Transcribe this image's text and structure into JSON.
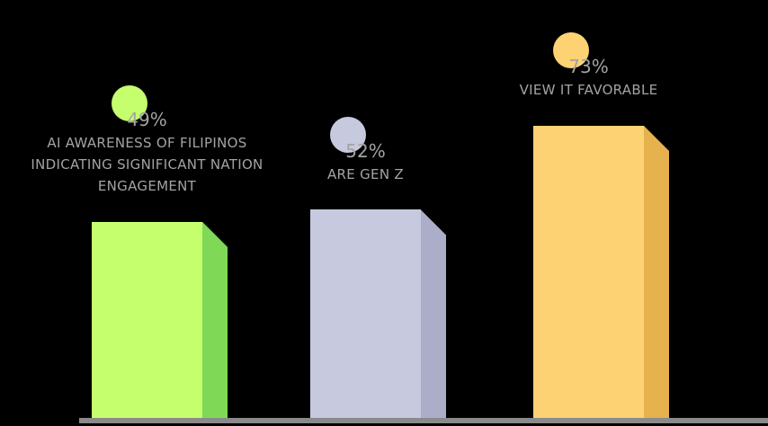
{
  "chart_data": {
    "type": "bar",
    "categories": [
      "AI AWARENESS OF FILIPINOS INDICATING SIGNIFICANT NATION ENGAGEMENT",
      "ARE GEN Z",
      "VIEW IT FAVORABLE"
    ],
    "values": [
      49,
      52,
      73
    ],
    "value_labels": [
      "49%",
      "52%",
      "73%"
    ],
    "colors": [
      "#c5ff6e",
      "#c7c9de",
      "#fdd273"
    ],
    "side_colors": [
      "#7fd957",
      "#abadc9",
      "#e6b24e"
    ]
  }
}
